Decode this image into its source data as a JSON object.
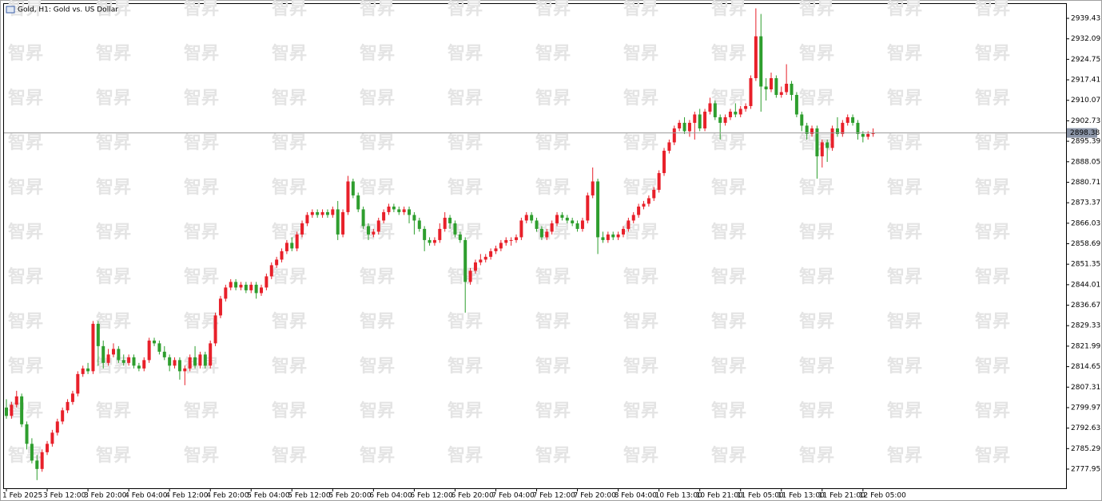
{
  "chart_data": {
    "type": "candlestick",
    "title": "Gold, H1:  Gold vs. US Dollar",
    "watermark": "智昇",
    "up_color": "#e8202a",
    "down_color": "#2e9e2e",
    "last_price": 2898.38,
    "ylim": [
      2771.09,
      2944.86
    ],
    "yticks": [
      2777.95,
      2785.29,
      2792.63,
      2799.97,
      2807.31,
      2814.65,
      2821.99,
      2829.33,
      2836.67,
      2844.01,
      2851.35,
      2858.69,
      2866.03,
      2873.37,
      2880.71,
      2888.05,
      2895.39,
      2902.73,
      2910.07,
      2917.41,
      2924.75,
      2932.09,
      2939.43
    ],
    "categories": [
      "1 Feb 2025",
      null,
      null,
      null,
      null,
      null,
      null,
      null,
      "3 Feb 12:00",
      null,
      null,
      null,
      null,
      null,
      null,
      null,
      "3 Feb 20:00",
      null,
      null,
      null,
      null,
      null,
      null,
      null,
      "4 Feb 04:00",
      null,
      null,
      null,
      null,
      null,
      null,
      null,
      "4 Feb 12:00",
      null,
      null,
      null,
      null,
      null,
      null,
      null,
      "4 Feb 20:00",
      null,
      null,
      null,
      null,
      null,
      null,
      null,
      "5 Feb 04:00",
      null,
      null,
      null,
      null,
      null,
      null,
      null,
      "5 Feb 12:00",
      null,
      null,
      null,
      null,
      null,
      null,
      null,
      "5 Feb 20:00",
      null,
      null,
      null,
      null,
      null,
      null,
      null,
      "6 Feb 04:00",
      null,
      null,
      null,
      null,
      null,
      null,
      null,
      "6 Feb 12:00",
      null,
      null,
      null,
      null,
      null,
      null,
      null,
      "6 Feb 20:00",
      null,
      null,
      null,
      null,
      null,
      null,
      null,
      "7 Feb 04:00",
      null,
      null,
      null,
      null,
      null,
      null,
      null,
      "7 Feb 12:00",
      null,
      null,
      null,
      null,
      null,
      null,
      null,
      "7 Feb 20:00",
      null,
      null,
      null,
      null,
      null,
      null,
      null,
      "8 Feb 04:00",
      null,
      null,
      null,
      null,
      null,
      null,
      null,
      "10 Feb 13:00",
      null,
      null,
      null,
      null,
      null,
      null,
      null,
      "10 Feb 21:00",
      null,
      null,
      null,
      null,
      null,
      null,
      null,
      "11 Feb 05:00",
      null,
      null,
      null,
      null,
      null,
      null,
      null,
      "11 Feb 13:00",
      null,
      null,
      null,
      null,
      null,
      null,
      null,
      "11 Feb 21:00",
      null,
      null,
      null,
      null,
      null,
      null,
      null,
      "12 Feb 05:00",
      null,
      null
    ],
    "candles": [
      [
        2800,
        2803,
        2796,
        2797
      ],
      [
        2797,
        2802,
        2796,
        2801
      ],
      [
        2801,
        2806,
        2800,
        2804
      ],
      [
        2804,
        2805,
        2793,
        2794
      ],
      [
        2794,
        2795,
        2785,
        2787
      ],
      [
        2787,
        2789,
        2780,
        2781
      ],
      [
        2781,
        2783,
        2774,
        2778
      ],
      [
        2778,
        2785,
        2777,
        2784
      ],
      [
        2784,
        2788,
        2783,
        2787
      ],
      [
        2787,
        2792,
        2786,
        2791
      ],
      [
        2791,
        2796,
        2790,
        2795
      ],
      [
        2795,
        2800,
        2794,
        2799
      ],
      [
        2799,
        2803,
        2798,
        2802
      ],
      [
        2802,
        2806,
        2801,
        2805
      ],
      [
        2805,
        2813,
        2804,
        2812
      ],
      [
        2812,
        2815,
        2811,
        2814
      ],
      [
        2814,
        2816,
        2812,
        2813
      ],
      [
        2813,
        2831,
        2812,
        2830
      ],
      [
        2830,
        2831,
        2815,
        2822
      ],
      [
        2822,
        2824,
        2814,
        2816
      ],
      [
        2816,
        2821,
        2815,
        2819
      ],
      [
        2819,
        2823,
        2818,
        2821
      ],
      [
        2821,
        2822,
        2816,
        2817
      ],
      [
        2817,
        2819,
        2815,
        2816
      ],
      [
        2816,
        2819,
        2815,
        2818
      ],
      [
        2818,
        2819,
        2814,
        2815
      ],
      [
        2815,
        2816,
        2813,
        2814
      ],
      [
        2814,
        2818,
        2813,
        2817
      ],
      [
        2817,
        2825,
        2816,
        2824
      ],
      [
        2824,
        2825,
        2822,
        2823
      ],
      [
        2823,
        2824,
        2819,
        2820
      ],
      [
        2820,
        2822,
        2817,
        2818
      ],
      [
        2818,
        2819,
        2813,
        2815
      ],
      [
        2815,
        2818,
        2814,
        2817
      ],
      [
        2817,
        2818,
        2810,
        2813
      ],
      [
        2813,
        2815,
        2808,
        2814
      ],
      [
        2814,
        2819,
        2813,
        2818
      ],
      [
        2818,
        2822,
        2814,
        2815
      ],
      [
        2815,
        2820,
        2814,
        2819
      ],
      [
        2819,
        2820,
        2814,
        2815
      ],
      [
        2815,
        2824,
        2814,
        2823
      ],
      [
        2823,
        2834,
        2822,
        2833
      ],
      [
        2833,
        2840,
        2832,
        2839
      ],
      [
        2839,
        2844,
        2838,
        2843
      ],
      [
        2843,
        2846,
        2842,
        2845
      ],
      [
        2845,
        2846,
        2842,
        2843
      ],
      [
        2843,
        2845,
        2842,
        2844
      ],
      [
        2844,
        2845,
        2841,
        2842
      ],
      [
        2842,
        2845,
        2841,
        2844
      ],
      [
        2844,
        2845,
        2839,
        2841
      ],
      [
        2841,
        2844,
        2840,
        2843
      ],
      [
        2843,
        2848,
        2842,
        2847
      ],
      [
        2847,
        2852,
        2846,
        2851
      ],
      [
        2851,
        2854,
        2850,
        2853
      ],
      [
        2853,
        2857,
        2852,
        2856
      ],
      [
        2856,
        2860,
        2855,
        2859
      ],
      [
        2859,
        2861,
        2856,
        2857
      ],
      [
        2857,
        2863,
        2856,
        2862
      ],
      [
        2862,
        2867,
        2861,
        2866
      ],
      [
        2866,
        2870,
        2865,
        2869
      ],
      [
        2869,
        2871,
        2868,
        2870
      ],
      [
        2870,
        2871,
        2868,
        2869
      ],
      [
        2869,
        2871,
        2868,
        2870
      ],
      [
        2870,
        2871,
        2868,
        2869
      ],
      [
        2869,
        2872,
        2868,
        2871
      ],
      [
        2871,
        2874,
        2860,
        2862
      ],
      [
        2862,
        2871,
        2861,
        2870
      ],
      [
        2870,
        2883,
        2869,
        2881
      ],
      [
        2881,
        2882,
        2875,
        2876
      ],
      [
        2876,
        2877,
        2870,
        2871
      ],
      [
        2871,
        2872,
        2864,
        2865
      ],
      [
        2865,
        2866,
        2860,
        2862
      ],
      [
        2862,
        2864,
        2861,
        2863
      ],
      [
        2863,
        2868,
        2862,
        2867
      ],
      [
        2867,
        2871,
        2866,
        2870
      ],
      [
        2870,
        2873,
        2869,
        2872
      ],
      [
        2872,
        2873,
        2870,
        2871
      ],
      [
        2871,
        2872,
        2869,
        2870
      ],
      [
        2870,
        2872,
        2869,
        2871
      ],
      [
        2871,
        2872,
        2866,
        2869
      ],
      [
        2869,
        2870,
        2862,
        2867
      ],
      [
        2867,
        2868,
        2863,
        2864
      ],
      [
        2864,
        2865,
        2856,
        2860
      ],
      [
        2860,
        2861,
        2858,
        2859
      ],
      [
        2859,
        2861,
        2858,
        2860
      ],
      [
        2860,
        2866,
        2859,
        2864
      ],
      [
        2864,
        2870,
        2863,
        2868
      ],
      [
        2868,
        2869,
        2864,
        2866
      ],
      [
        2866,
        2867,
        2861,
        2862
      ],
      [
        2862,
        2863,
        2859,
        2860
      ],
      [
        2860,
        2861,
        2834,
        2845
      ],
      [
        2845,
        2850,
        2844,
        2849
      ],
      [
        2849,
        2853,
        2848,
        2852
      ],
      [
        2852,
        2855,
        2851,
        2853
      ],
      [
        2853,
        2855,
        2852,
        2854
      ],
      [
        2854,
        2857,
        2853,
        2856
      ],
      [
        2856,
        2858,
        2855,
        2857
      ],
      [
        2857,
        2860,
        2856,
        2859
      ],
      [
        2859,
        2861,
        2858,
        2860
      ],
      [
        2860,
        2861,
        2858,
        2860
      ],
      [
        2860,
        2862,
        2859,
        2861
      ],
      [
        2861,
        2868,
        2860,
        2867
      ],
      [
        2867,
        2870,
        2866,
        2869
      ],
      [
        2869,
        2870,
        2866,
        2867
      ],
      [
        2867,
        2868,
        2863,
        2864
      ],
      [
        2864,
        2865,
        2860,
        2861
      ],
      [
        2861,
        2864,
        2860,
        2863
      ],
      [
        2863,
        2867,
        2862,
        2866
      ],
      [
        2866,
        2870,
        2865,
        2869
      ],
      [
        2869,
        2870,
        2867,
        2868
      ],
      [
        2868,
        2869,
        2866,
        2867
      ],
      [
        2867,
        2868,
        2865,
        2866
      ],
      [
        2866,
        2867,
        2863,
        2864
      ],
      [
        2864,
        2868,
        2863,
        2867
      ],
      [
        2867,
        2877,
        2866,
        2876
      ],
      [
        2876,
        2886,
        2875,
        2881
      ],
      [
        2881,
        2882,
        2855,
        2861
      ],
      [
        2861,
        2863,
        2859,
        2860
      ],
      [
        2860,
        2863,
        2859,
        2862
      ],
      [
        2862,
        2863,
        2860,
        2861
      ],
      [
        2861,
        2863,
        2860,
        2862
      ],
      [
        2862,
        2865,
        2861,
        2864
      ],
      [
        2864,
        2868,
        2863,
        2867
      ],
      [
        2867,
        2870,
        2866,
        2869
      ],
      [
        2869,
        2873,
        2868,
        2872
      ],
      [
        2872,
        2874,
        2871,
        2873
      ],
      [
        2873,
        2876,
        2872,
        2875
      ],
      [
        2875,
        2879,
        2874,
        2878
      ],
      [
        2878,
        2885,
        2877,
        2884
      ],
      [
        2884,
        2893,
        2883,
        2892
      ],
      [
        2892,
        2896,
        2891,
        2895
      ],
      [
        2895,
        2901,
        2894,
        2900
      ],
      [
        2900,
        2903,
        2899,
        2902
      ],
      [
        2902,
        2904,
        2898,
        2899
      ],
      [
        2899,
        2903,
        2897,
        2902
      ],
      [
        2902,
        2906,
        2896,
        2905
      ],
      [
        2905,
        2907,
        2899,
        2900
      ],
      [
        2900,
        2907,
        2899,
        2906
      ],
      [
        2906,
        2911,
        2905,
        2909
      ],
      [
        2909,
        2910,
        2903,
        2904
      ],
      [
        2904,
        2905,
        2896,
        2902
      ],
      [
        2902,
        2905,
        2901,
        2904
      ],
      [
        2904,
        2907,
        2903,
        2906
      ],
      [
        2906,
        2909,
        2904,
        2905
      ],
      [
        2905,
        2908,
        2904,
        2907
      ],
      [
        2907,
        2909,
        2906,
        2908
      ],
      [
        2908,
        2919,
        2907,
        2918
      ],
      [
        2918,
        2943,
        2917,
        2933
      ],
      [
        2933,
        2941,
        2906,
        2915
      ],
      [
        2915,
        2918,
        2910,
        2914
      ],
      [
        2914,
        2920,
        2913,
        2918
      ],
      [
        2918,
        2919,
        2911,
        2912
      ],
      [
        2912,
        2915,
        2911,
        2913
      ],
      [
        2913,
        2923,
        2912,
        2916
      ],
      [
        2916,
        2917,
        2910,
        2912
      ],
      [
        2912,
        2913,
        2904,
        2905
      ],
      [
        2905,
        2906,
        2899,
        2901
      ],
      [
        2901,
        2902,
        2896,
        2898
      ],
      [
        2898,
        2901,
        2897,
        2900
      ],
      [
        2900,
        2901,
        2882,
        2890
      ],
      [
        2890,
        2896,
        2886,
        2895
      ],
      [
        2895,
        2896,
        2888,
        2893
      ],
      [
        2893,
        2901,
        2892,
        2900
      ],
      [
        2900,
        2904,
        2897,
        2898
      ],
      [
        2898,
        2903,
        2897,
        2902
      ],
      [
        2902,
        2905,
        2901,
        2904
      ],
      [
        2904,
        2905,
        2901,
        2902
      ],
      [
        2902,
        2903,
        2896,
        2898
      ],
      [
        2898,
        2899,
        2895,
        2897
      ],
      [
        2897,
        2899,
        2896,
        2898
      ],
      [
        2898,
        2900,
        2897,
        2898.38
      ]
    ]
  }
}
